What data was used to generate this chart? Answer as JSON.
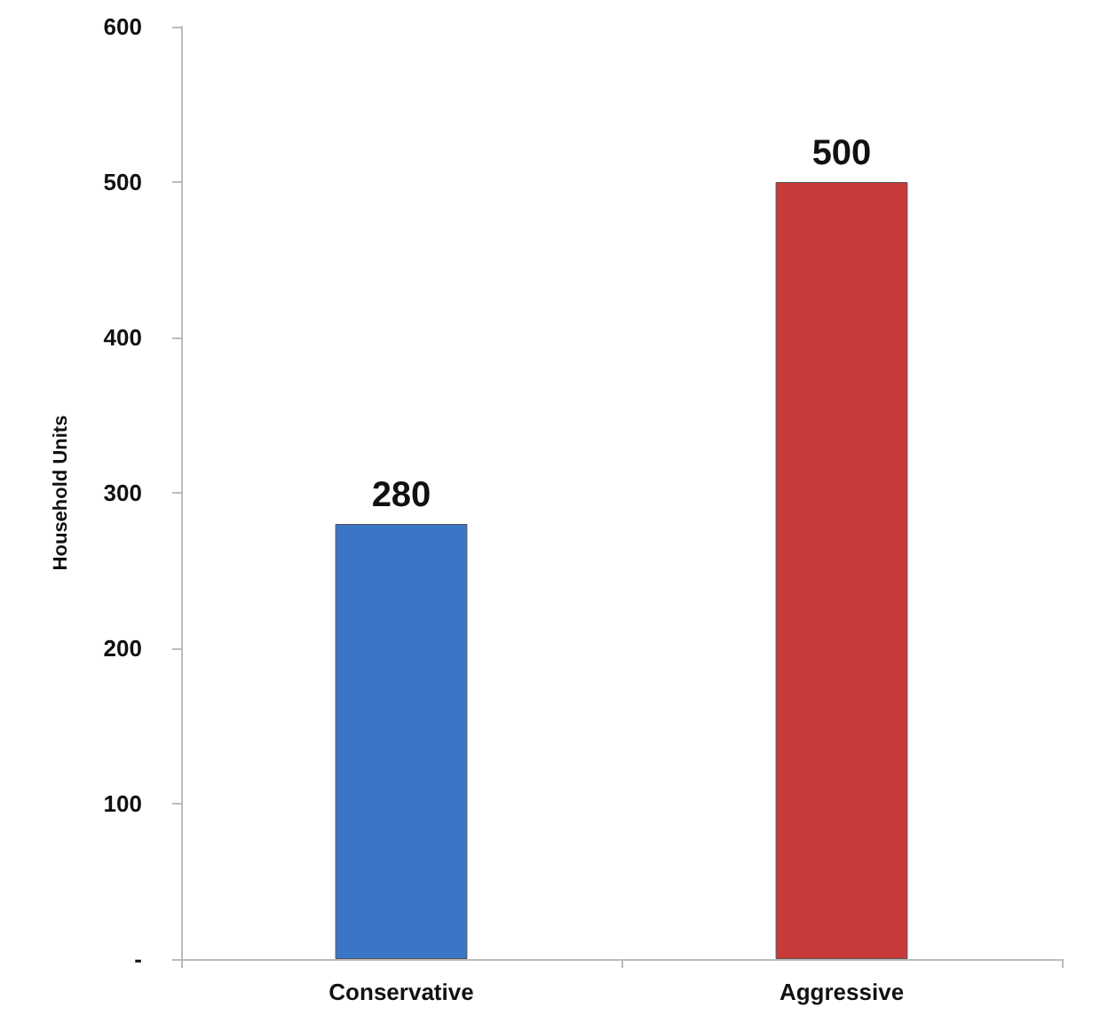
{
  "chart_data": {
    "type": "bar",
    "ylabel": "Household Units",
    "categories": [
      "Conservative",
      "Aggressive"
    ],
    "values": [
      280,
      500
    ],
    "colors": [
      "#3b76c6",
      "#c93a3a"
    ],
    "ylim": [
      0,
      600
    ],
    "yticks": [
      {
        "value": 0,
        "label": "-"
      },
      100,
      200,
      300,
      400,
      500,
      600
    ],
    "data_labels": true
  }
}
